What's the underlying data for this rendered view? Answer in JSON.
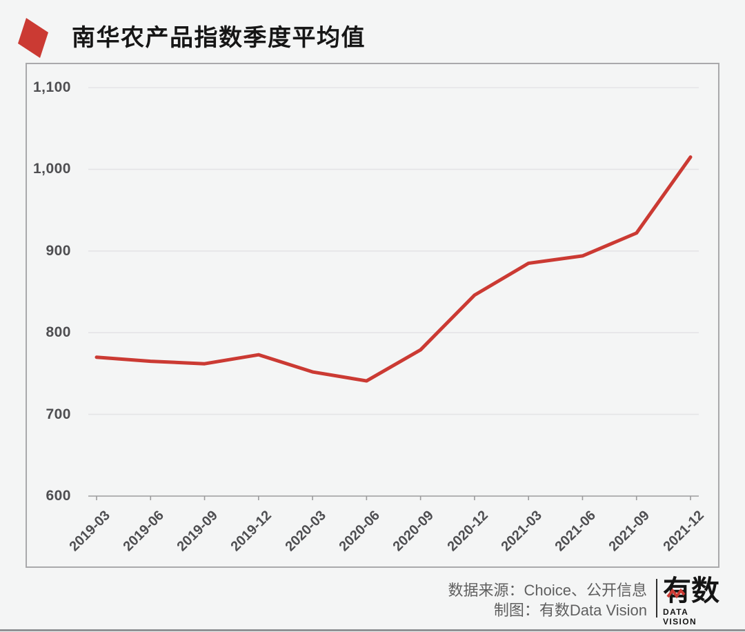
{
  "page_title": "南华农产品指数季度平均值",
  "accent_color": "#cb3a33",
  "chart_data": {
    "type": "line",
    "title": "南华农产品指数季度平均值",
    "categories": [
      "2019-03",
      "2019-06",
      "2019-09",
      "2019-12",
      "2020-03",
      "2020-06",
      "2020-09",
      "2020-12",
      "2021-03",
      "2021-06",
      "2021-09",
      "2021-12"
    ],
    "values": [
      770,
      765,
      762,
      773,
      752,
      741,
      779,
      846,
      885,
      894,
      922,
      1015
    ],
    "xlabel": "",
    "ylabel": "",
    "ylim": [
      600,
      1100
    ],
    "yticks": [
      600,
      700,
      800,
      900,
      1000,
      1100
    ],
    "ytick_labels": [
      "600",
      "700",
      "800",
      "900",
      "1,000",
      "1,100"
    ],
    "line_color": "#cb3a33",
    "gridline_color": "#e4e4e6",
    "axis_color": "#9b9b9d",
    "grid": "horizontal",
    "legend": "none"
  },
  "footer": {
    "source_line": "数据来源：Choice、公开信息",
    "credit_line": "制图：有数Data Vision",
    "logo_cjk": "有数",
    "logo_subtitle": "DATA VISION"
  }
}
